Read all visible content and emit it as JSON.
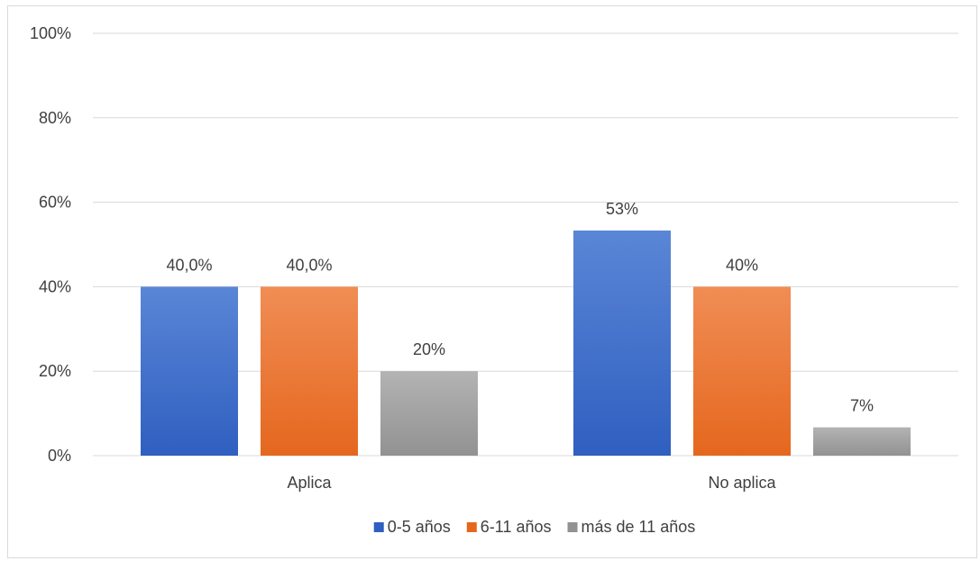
{
  "chart_data": {
    "type": "bar",
    "categories": [
      "Aplica",
      "No aplica"
    ],
    "series": [
      {
        "name": "0-5 años",
        "values": [
          40,
          53.3
        ],
        "labels": [
          "40,0%",
          "53%"
        ],
        "color_top": "#5a86d6",
        "color_bottom": "#2f5fc0"
      },
      {
        "name": "6-11 años",
        "values": [
          40,
          40
        ],
        "labels": [
          "40,0%",
          "40%"
        ],
        "color_top": "#f08d55",
        "color_bottom": "#e5671e"
      },
      {
        "name": "más de 11 años",
        "values": [
          20,
          6.7
        ],
        "labels": [
          "20%",
          "7%"
        ],
        "color_top": "#b3b3b3",
        "color_bottom": "#929292"
      }
    ],
    "yticks": [
      "0%",
      "20%",
      "40%",
      "60%",
      "80%",
      "100%"
    ],
    "ylim": [
      0,
      100
    ],
    "grid": true,
    "legend_position": "bottom"
  }
}
